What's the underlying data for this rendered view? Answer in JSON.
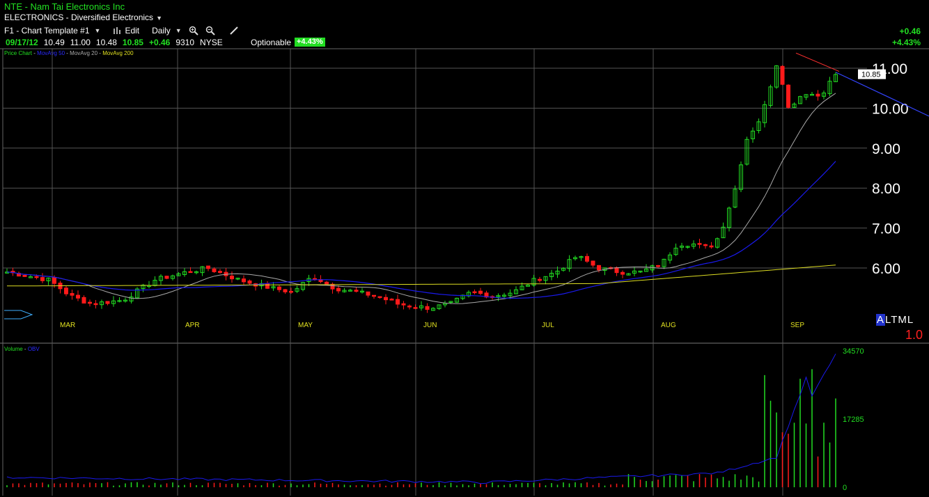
{
  "header": {
    "symbol_line": "NTE - Nam Tai Electronics Inc",
    "sector_line": "ELECTRONICS - Diversified Electronics",
    "template": "F1 - Chart Template #1",
    "edit": "Edit",
    "period": "Daily",
    "change_abs": "+0.46",
    "change_pct": "+4.43%"
  },
  "quote": {
    "date": "09/17/12",
    "open": "10.49",
    "high": "11.00",
    "low": "10.48",
    "last": "10.85",
    "change": "+0.46",
    "volume": "9310",
    "exchange": "NYSE",
    "optionable": "Optionable",
    "pct_badge": "+4.43%"
  },
  "price_legend": {
    "price_chart": "Price Chart",
    "ma50": "MovAvg 50",
    "ma20": "MovAvg 20",
    "ma200": "MovAvg 200"
  },
  "volume_legend": {
    "volume": "Volume",
    "obv": "OBV"
  },
  "price_axis": {
    "ticks": [
      "11.00",
      "10.00",
      "9.00",
      "8.00",
      "7.00",
      "6.00"
    ],
    "last_label": "10.85"
  },
  "volume_axis": {
    "ticks": [
      "34570",
      "17285",
      "0"
    ]
  },
  "months": [
    "MAR",
    "APR",
    "MAY",
    "JUN",
    "JUL",
    "AUG",
    "SEP"
  ],
  "altml": {
    "a": "A",
    "rest": "LTML"
  },
  "ratio": "1.0",
  "colors": {
    "up": "#22dd22",
    "down": "#ff1a1a",
    "ma20": "#aaaaaa",
    "ma50": "#1a1aee",
    "ma200": "#dddd22",
    "grid": "#555555"
  }
}
